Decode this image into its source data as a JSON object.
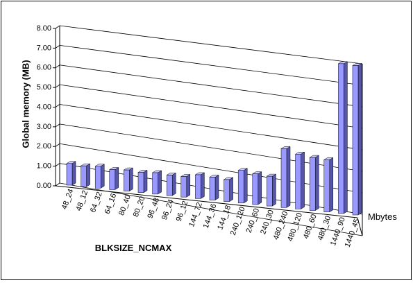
{
  "chart_data": {
    "type": "bar3d",
    "y_label": "Global memory (MB)",
    "x_label": "BLKSIZE_NCMAX",
    "categories": [
      "48_24",
      "48_12",
      "64_32",
      "64_16",
      "80_40",
      "80_20",
      "96_48",
      "96_24",
      "96_12",
      "144_72",
      "144_36",
      "144_18",
      "240_120",
      "240_60",
      "240_30",
      "480_240",
      "480_120",
      "480_60",
      "480_30",
      "1440_90",
      "1440_45"
    ],
    "series": [
      {
        "name": "Mbytes",
        "color": "#9999ff",
        "values": [
          1.1,
          1.05,
          1.1,
          1.0,
          1.05,
          1.0,
          1.05,
          1.0,
          1.0,
          1.15,
          1.1,
          1.05,
          1.55,
          1.45,
          1.4,
          2.75,
          2.55,
          2.45,
          2.4,
          6.85,
          6.8
        ]
      }
    ],
    "ylim": [
      0,
      8
    ],
    "yticks": [
      {
        "value": 0,
        "label": "0.00"
      },
      {
        "value": 1,
        "label": "1.00"
      },
      {
        "value": 2,
        "label": "2.00"
      },
      {
        "value": 3,
        "label": "3.00"
      },
      {
        "value": 4,
        "label": "4.00"
      },
      {
        "value": 5,
        "label": "5.00"
      },
      {
        "value": 6,
        "label": "6.00"
      },
      {
        "value": 7,
        "label": "7.00"
      },
      {
        "value": 8,
        "label": "8.00"
      }
    ],
    "grid": true
  }
}
